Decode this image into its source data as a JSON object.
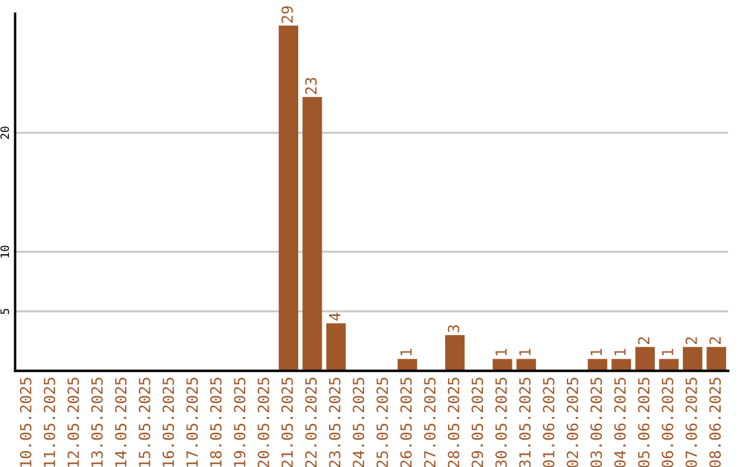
{
  "chart_data": {
    "type": "bar",
    "categories": [
      "10.05.2025",
      "11.05.2025",
      "12.05.2025",
      "13.05.2025",
      "14.05.2025",
      "15.05.2025",
      "16.05.2025",
      "17.05.2025",
      "18.05.2025",
      "19.05.2025",
      "20.05.2025",
      "21.05.2025",
      "22.05.2025",
      "23.05.2025",
      "24.05.2025",
      "25.05.2025",
      "26.05.2025",
      "27.05.2025",
      "28.05.2025",
      "29.05.2025",
      "30.05.2025",
      "31.05.2025",
      "01.06.2025",
      "02.06.2025",
      "03.06.2025",
      "04.06.2025",
      "05.06.2025",
      "06.06.2025",
      "07.06.2025",
      "08.06.2025"
    ],
    "values": [
      0,
      0,
      0,
      0,
      0,
      0,
      0,
      0,
      0,
      0,
      0,
      29,
      23,
      4,
      0,
      0,
      1,
      0,
      3,
      0,
      1,
      1,
      0,
      0,
      1,
      1,
      2,
      1,
      2,
      2
    ],
    "value_labels": [
      null,
      null,
      null,
      null,
      null,
      null,
      null,
      null,
      null,
      null,
      null,
      "29",
      "23",
      "4",
      null,
      null,
      "1",
      null,
      "3",
      null,
      "1",
      "1",
      null,
      null,
      "1",
      "1",
      "2",
      "1",
      "2",
      "2"
    ],
    "color": "#a0572a",
    "ylim": [
      0,
      30
    ],
    "yticks": [
      5,
      10,
      20
    ],
    "grid": "y"
  }
}
